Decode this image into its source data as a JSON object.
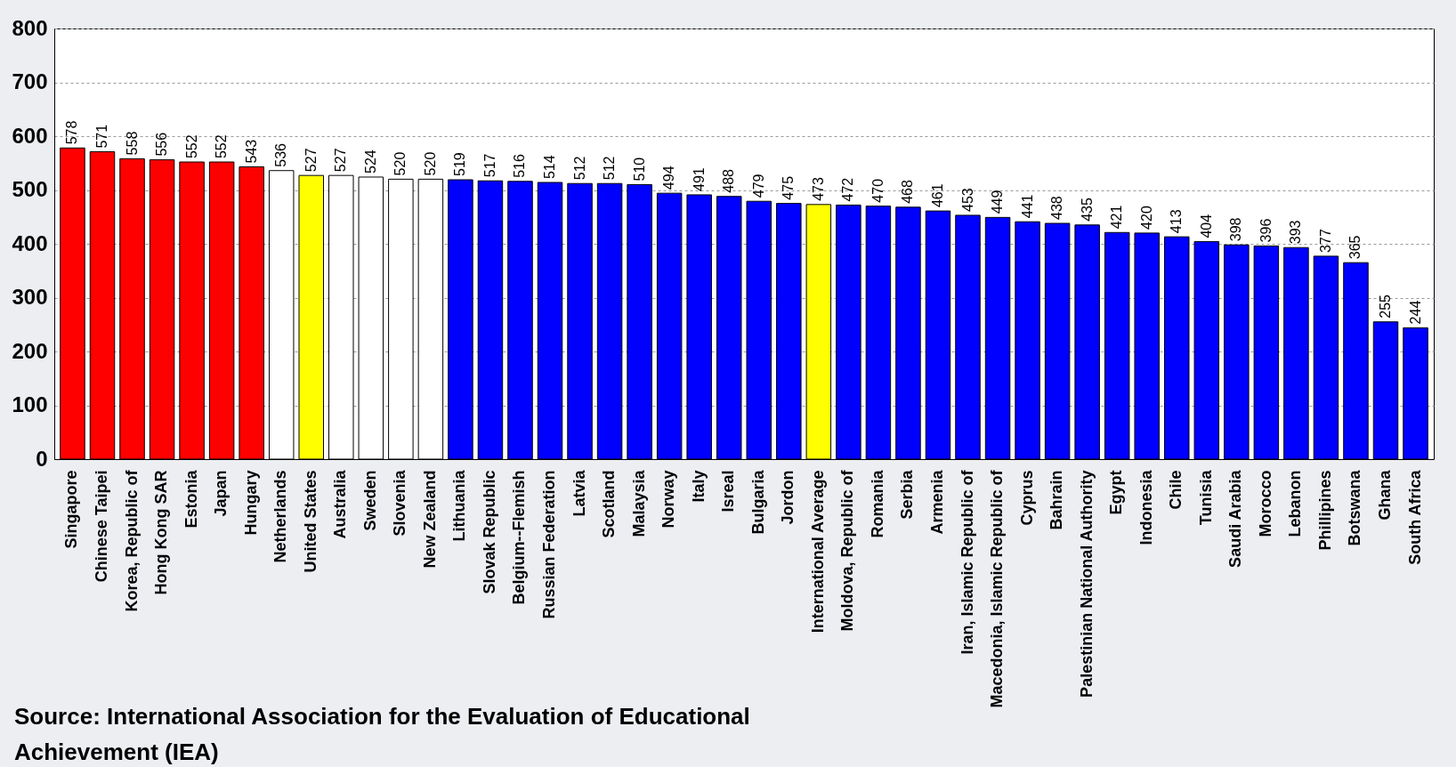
{
  "chart_data": {
    "type": "bar",
    "categories": [
      "Singapore",
      "Chinese Taipei",
      "Korea, Republic of",
      "Hong Kong SAR",
      "Estonia",
      "Japan",
      "Hungary",
      "Netherlands",
      "United States",
      "Australia",
      "Sweden",
      "Slovenia",
      "New Zealand",
      "Lithuania",
      "Slovak Republic",
      "Belgium--Flemish",
      "Russian Federation",
      "Latvia",
      "Scotland",
      "Malaysia",
      "Norway",
      "Italy",
      "Isreal",
      "Bulgaria",
      "Jordon",
      "International Average",
      "Moldova, Republic of",
      "Romania",
      "Serbia",
      "Armenia",
      "Iran, Islamic Republic of",
      "Macedonia, Islamic Republic of",
      "Cyprus",
      "Bahrain",
      "Palestinian National Authority",
      "Egypt",
      "Indonesia",
      "Chile",
      "Tunisia",
      "Saudi Arabia",
      "Morocco",
      "Lebanon",
      "Phillipines",
      "Botswana",
      "Ghana",
      "South Africa"
    ],
    "values": [
      578,
      571,
      558,
      556,
      552,
      552,
      543,
      536,
      527,
      527,
      524,
      520,
      520,
      519,
      517,
      516,
      514,
      512,
      512,
      510,
      494,
      491,
      488,
      479,
      475,
      473,
      472,
      470,
      468,
      461,
      453,
      449,
      441,
      438,
      435,
      421,
      420,
      413,
      404,
      398,
      396,
      393,
      377,
      365,
      255,
      244
    ],
    "colors": [
      "#ff0000",
      "#ff0000",
      "#ff0000",
      "#ff0000",
      "#ff0000",
      "#ff0000",
      "#ff0000",
      "#ffffff",
      "#ffff00",
      "#ffffff",
      "#ffffff",
      "#ffffff",
      "#ffffff",
      "#0000ff",
      "#0000ff",
      "#0000ff",
      "#0000ff",
      "#0000ff",
      "#0000ff",
      "#0000ff",
      "#0000ff",
      "#0000ff",
      "#0000ff",
      "#0000ff",
      "#0000ff",
      "#ffff00",
      "#0000ff",
      "#0000ff",
      "#0000ff",
      "#0000ff",
      "#0000ff",
      "#0000ff",
      "#0000ff",
      "#0000ff",
      "#0000ff",
      "#0000ff",
      "#0000ff",
      "#0000ff",
      "#0000ff",
      "#0000ff",
      "#0000ff",
      "#0000ff",
      "#0000ff",
      "#0000ff",
      "#0000ff",
      "#0000ff"
    ],
    "ylim": [
      0,
      800
    ],
    "yticks": [
      0,
      100,
      200,
      300,
      400,
      500,
      600,
      700,
      800
    ],
    "grid": "y",
    "data_labels": true,
    "annotations": [
      "Source: International Association for the Evaluation of Educational Achievement (IEA)"
    ]
  }
}
